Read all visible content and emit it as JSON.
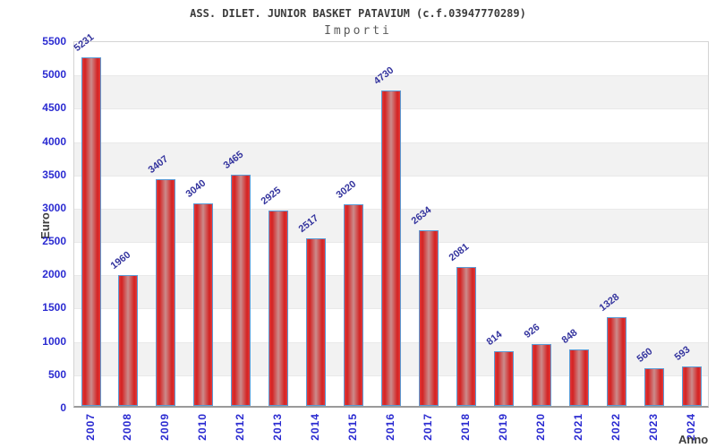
{
  "chart_data": {
    "type": "bar",
    "title": "ASS. DILET. JUNIOR BASKET PATAVIUM (c.f.03947770289)",
    "subtitle": "Importi",
    "xlabel": "Anno",
    "ylabel": "Euro",
    "categories": [
      "2007",
      "2008",
      "2009",
      "2010",
      "2012",
      "2013",
      "2014",
      "2015",
      "2016",
      "2017",
      "2018",
      "2019",
      "2020",
      "2021",
      "2022",
      "2023",
      "2024"
    ],
    "values": [
      5231,
      1960,
      3407,
      3040,
      3465,
      2925,
      2517,
      3020,
      4730,
      2634,
      2081,
      814,
      926,
      848,
      1328,
      560,
      593
    ],
    "ylim": [
      0,
      5500
    ],
    "ytick_step": 500,
    "yticks": [
      0,
      500,
      1000,
      1500,
      2000,
      2500,
      3000,
      3500,
      4000,
      4500,
      5000,
      5500
    ],
    "grid": "alternating horizontal bands every 500, no legend",
    "legend": null,
    "colors": {
      "bar_fill_edge": "#d42222",
      "bar_fill_mid": "#cb8b8b",
      "bar_border": "#5b9bd5",
      "axis_tick_label": "#2b2bd1",
      "value_label": "#34349e",
      "title_text": "#3c3c3c",
      "subtitle_text": "#5a5a5a",
      "band_gray": "#f2f2f2",
      "plot_border": "#d4d4d4",
      "baseline": "#9a9a9a"
    }
  }
}
